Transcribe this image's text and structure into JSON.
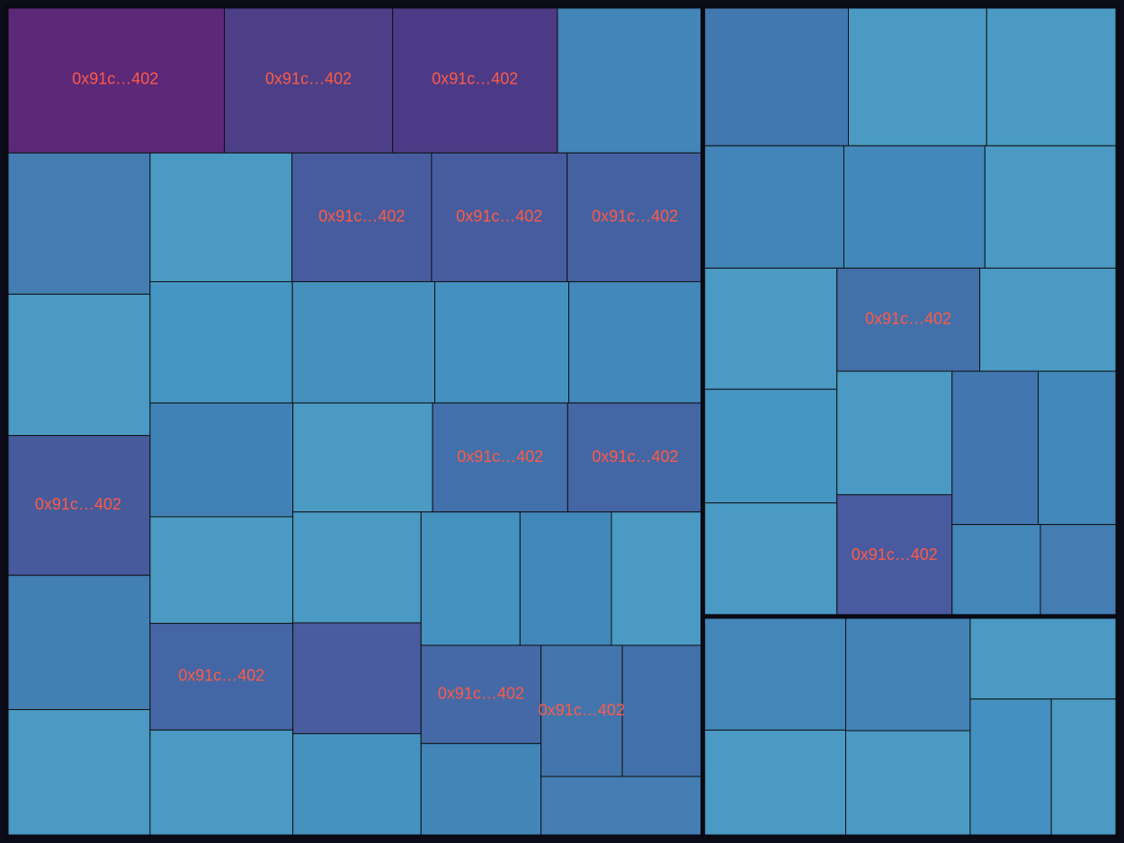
{
  "chart_data": {
    "type": "treemap",
    "title": "",
    "label_color": "#ff5a46",
    "color_scale": [
      "#5a2677",
      "#4a3e86",
      "#455a9c",
      "#4270a8",
      "#4183b6",
      "#4597c2",
      "#48a2c8"
    ],
    "groups": [
      {
        "name": "",
        "items": [
          {
            "label": "0x91c…402",
            "value": 238,
            "color": "#4d3a86"
          },
          {
            "label": "0x91c…402",
            "value": 243,
            "color": "#4c3f88"
          },
          {
            "label": "0x91c…402",
            "value": 315,
            "color": "#5c2878"
          },
          {
            "label": "",
            "value": 96,
            "color": "#437db2"
          },
          {
            "label": "0x91c…402",
            "value": 198,
            "color": "#465a9c"
          },
          {
            "label": "0x91c…402",
            "value": 177,
            "color": "#465c9e"
          },
          {
            "label": "0x91c…402",
            "value": 145,
            "color": "#4270aa"
          },
          {
            "label": "0x91c…402",
            "value": 105,
            "color": "#4375ad"
          },
          {
            "label": "",
            "value": 110,
            "color": "#4286b8"
          },
          {
            "label": "",
            "value": 150,
            "color": "#4a9ac4"
          },
          {
            "label": "",
            "value": 160,
            "color": "#4490c0"
          },
          {
            "label": "",
            "value": 190,
            "color": "#427fb3"
          },
          {
            "label": "",
            "value": 130,
            "color": "#4592c0"
          },
          {
            "label": "",
            "value": 120,
            "color": "#4287b9"
          },
          {
            "label": "",
            "value": 200,
            "color": "#437db2"
          },
          {
            "label": "",
            "value": 140,
            "color": "#4a9ac4"
          },
          {
            "label": "",
            "value": 170,
            "color": "#4596c3"
          },
          {
            "label": "0x91c…402",
            "value": 172,
            "color": "#465c9e"
          },
          {
            "label": "0x91c…402",
            "value": 145,
            "color": "#4566a4"
          },
          {
            "label": "0x91c…402",
            "value": 116,
            "color": "#4569a6"
          },
          {
            "label": "0x91c…402",
            "value": 172,
            "color": "#4462a2"
          },
          {
            "label": "0x91c…402",
            "value": 150,
            "color": "#4466a4"
          },
          {
            "label": "0x91c…402",
            "value": 104,
            "color": "#4270aa"
          },
          {
            "label": "",
            "value": 160,
            "color": "#4288ba"
          },
          {
            "label": "",
            "value": 180,
            "color": "#4a9ac4"
          },
          {
            "label": "",
            "value": 210,
            "color": "#4285b8"
          },
          {
            "label": "",
            "value": 170,
            "color": "#4690be"
          },
          {
            "label": "",
            "value": 150,
            "color": "#4a9ac4"
          },
          {
            "label": "",
            "value": 140,
            "color": "#4a5ca0"
          },
          {
            "label": "",
            "value": 130,
            "color": "#4592c0"
          },
          {
            "label": "",
            "value": 200,
            "color": "#4a9ac4"
          },
          {
            "label": "",
            "value": 180,
            "color": "#4a9ac4"
          },
          {
            "label": "",
            "value": 160,
            "color": "#4182b6"
          },
          {
            "label": "",
            "value": 150,
            "color": "#4a9ac4"
          },
          {
            "label": "",
            "value": 120,
            "color": "#4a9ac4"
          }
        ]
      },
      {
        "name": "",
        "items": [
          {
            "label": "0x91c…402",
            "value": 145,
            "color": "#4470aa"
          },
          {
            "label": "",
            "value": 120,
            "color": "#4288ba"
          },
          {
            "label": "0x91c…402",
            "value": 138,
            "color": "#4a5aa0"
          },
          {
            "label": "",
            "value": 80,
            "color": "#4386b8"
          },
          {
            "label": "",
            "value": 70,
            "color": "#437db2"
          },
          {
            "label": "",
            "value": 160,
            "color": "#4a9ac4"
          },
          {
            "label": "",
            "value": 150,
            "color": "#4596c3"
          },
          {
            "label": "",
            "value": 140,
            "color": "#4a9ac4"
          },
          {
            "label": "",
            "value": 200,
            "color": "#4278b0"
          },
          {
            "label": "",
            "value": 180,
            "color": "#4a9ac4"
          },
          {
            "label": "",
            "value": 170,
            "color": "#4285b8"
          },
          {
            "label": "",
            "value": 150,
            "color": "#4a9ac4"
          },
          {
            "label": "",
            "value": 130,
            "color": "#4276b0"
          },
          {
            "label": "",
            "value": 190,
            "color": "#4a9ac4"
          },
          {
            "label": "",
            "value": 170,
            "color": "#4288ba"
          },
          {
            "label": "",
            "value": 160,
            "color": "#4a9ac4"
          },
          {
            "label": "",
            "value": 140,
            "color": "#4a9ac4"
          }
        ]
      },
      {
        "name": "",
        "items": [
          {
            "label": "",
            "value": 160,
            "color": "#4386b8"
          },
          {
            "label": "",
            "value": 150,
            "color": "#4a9ac4"
          },
          {
            "label": "",
            "value": 130,
            "color": "#4a9ac4"
          },
          {
            "label": "",
            "value": 140,
            "color": "#4383b6"
          },
          {
            "label": "",
            "value": 120,
            "color": "#4a9ac4"
          },
          {
            "label": "",
            "value": 110,
            "color": "#4490c0"
          },
          {
            "label": "",
            "value": 90,
            "color": "#4a9ac4"
          }
        ]
      }
    ]
  }
}
